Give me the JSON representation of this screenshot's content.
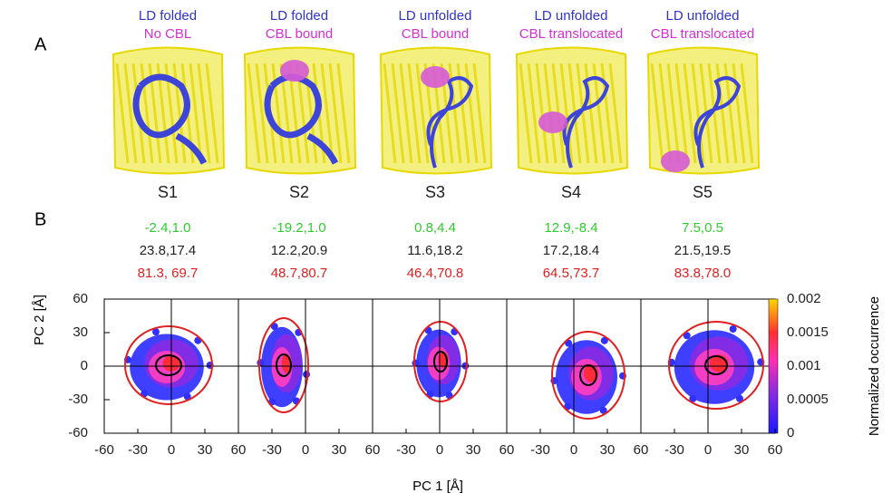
{
  "panel_a": {
    "label": "A",
    "states": [
      {
        "ld": "LD folded",
        "cbl": "No CBL",
        "name": "S1"
      },
      {
        "ld": "LD folded",
        "cbl": "CBL bound",
        "name": "S2"
      },
      {
        "ld": "LD unfolded",
        "cbl": "CBL bound",
        "name": "S3"
      },
      {
        "ld": "LD unfolded",
        "cbl": "CBL translocated",
        "name": "S4"
      },
      {
        "ld": "LD unfolded",
        "cbl": "CBL translocated",
        "name": "S5"
      }
    ]
  },
  "panel_b": {
    "label": "B",
    "stats": [
      {
        "center": "-2.4,1.0",
        "width": "23.8,17.4",
        "outer": "81.3, 69.7"
      },
      {
        "center": "-19.2,1.0",
        "width": "12.2,20.9",
        "outer": "48.7,80.7"
      },
      {
        "center": "0.8,4.4",
        "width": "11.6,18.2",
        "outer": "46.4,70.8"
      },
      {
        "center": "12.9,-8.4",
        "width": "17.2,18.4",
        "outer": "64.5,73.7"
      },
      {
        "center": "7.5,0.5",
        "width": "21.5,19.5",
        "outer": "83.8,78.0"
      }
    ],
    "y_axis_label": "PC 2 [Å]",
    "x_axis_label": "PC 1 [Å]",
    "yticks": [
      "60",
      "30",
      "0",
      "-30",
      "-60"
    ],
    "xticks": [
      "-60",
      "-30",
      "0",
      "30",
      "60"
    ],
    "colorbar": {
      "label": "Normalized occurrence",
      "ticks": [
        "0.002",
        "0.0015",
        "0.001",
        "0.0005",
        "0"
      ]
    }
  }
}
